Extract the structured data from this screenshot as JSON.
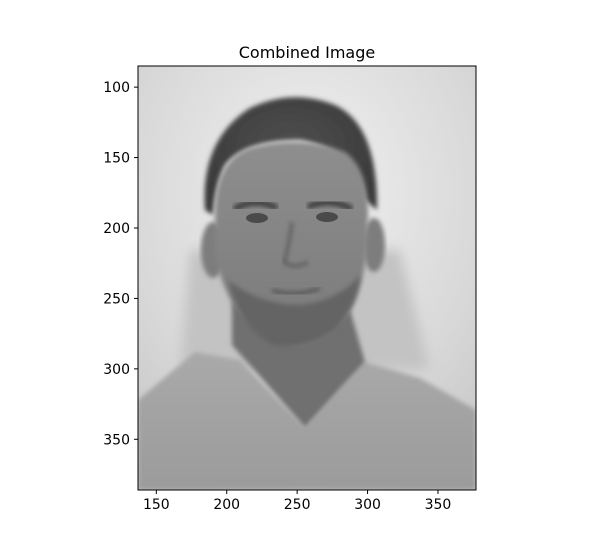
{
  "chart_data": {
    "type": "image",
    "title": "Combined Image",
    "xlabel": "",
    "ylabel": "",
    "xlim": [
      137,
      377
    ],
    "ylim": [
      386,
      85
    ],
    "x_ticks": [
      150,
      200,
      250,
      300,
      350
    ],
    "y_ticks": [
      100,
      150,
      200,
      250,
      300,
      350
    ],
    "y_inverted": true,
    "grid": false,
    "colormap": "gray",
    "image_description": "grayscale portrait, blended"
  }
}
